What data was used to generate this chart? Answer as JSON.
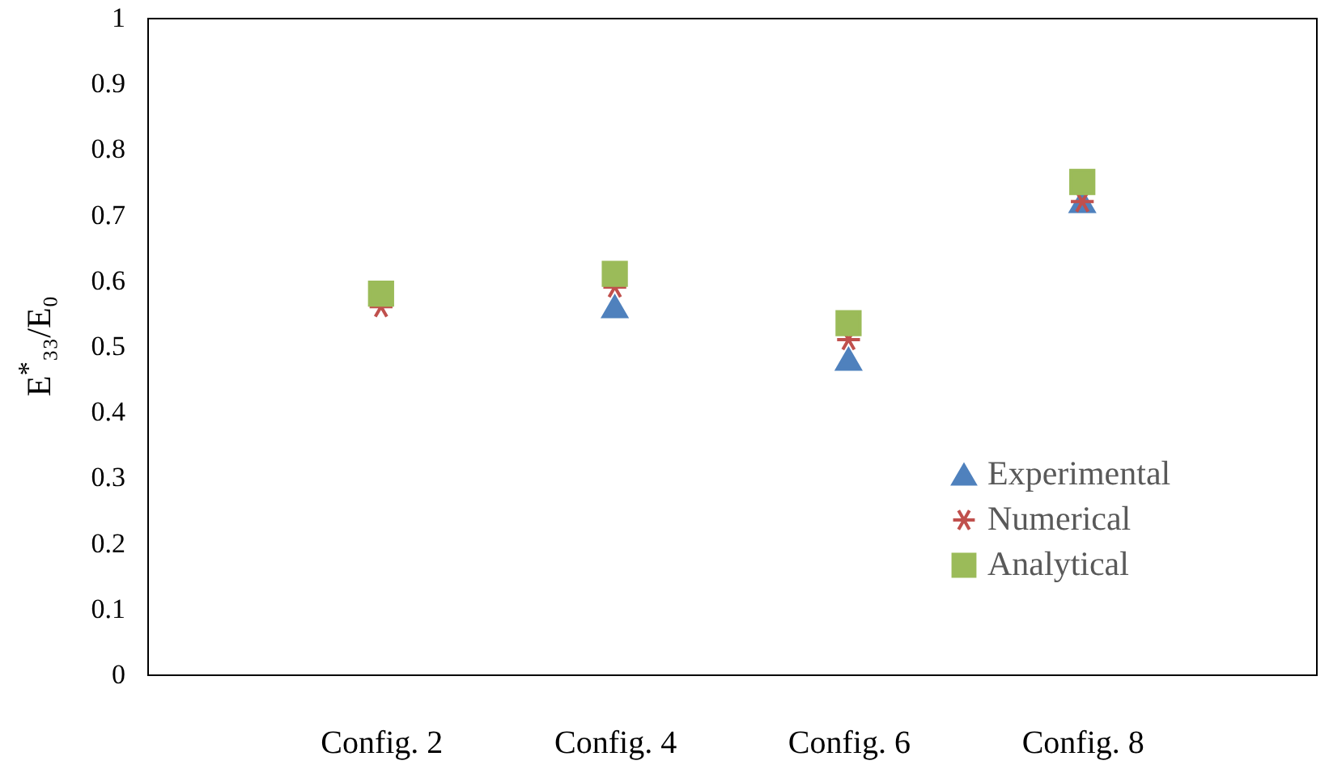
{
  "chart_data": {
    "type": "scatter",
    "ylabel": "E$^{*}$₃₃/E₀",
    "categories": [
      "Config. 2",
      "Config. 4",
      "Config. 6",
      "Config. 8"
    ],
    "ylim": [
      0,
      1
    ],
    "yticks": [
      0,
      0.1,
      0.2,
      0.3,
      0.4,
      0.5,
      0.6,
      0.7,
      0.8,
      0.9,
      1
    ],
    "grid": false,
    "legend": "bottom right",
    "series": [
      {
        "name": "Experimental",
        "color": "#4f81bd",
        "marker": "triangle",
        "values": [
          null,
          0.56,
          0.48,
          0.72
        ]
      },
      {
        "name": "Numerical",
        "color": "#c0504d",
        "marker": "cross",
        "values": [
          0.56,
          0.59,
          0.51,
          0.72
        ]
      },
      {
        "name": "Analytical",
        "color": "#9bbb59",
        "marker": "square",
        "values": [
          0.58,
          0.61,
          0.535,
          0.75
        ]
      }
    ]
  }
}
